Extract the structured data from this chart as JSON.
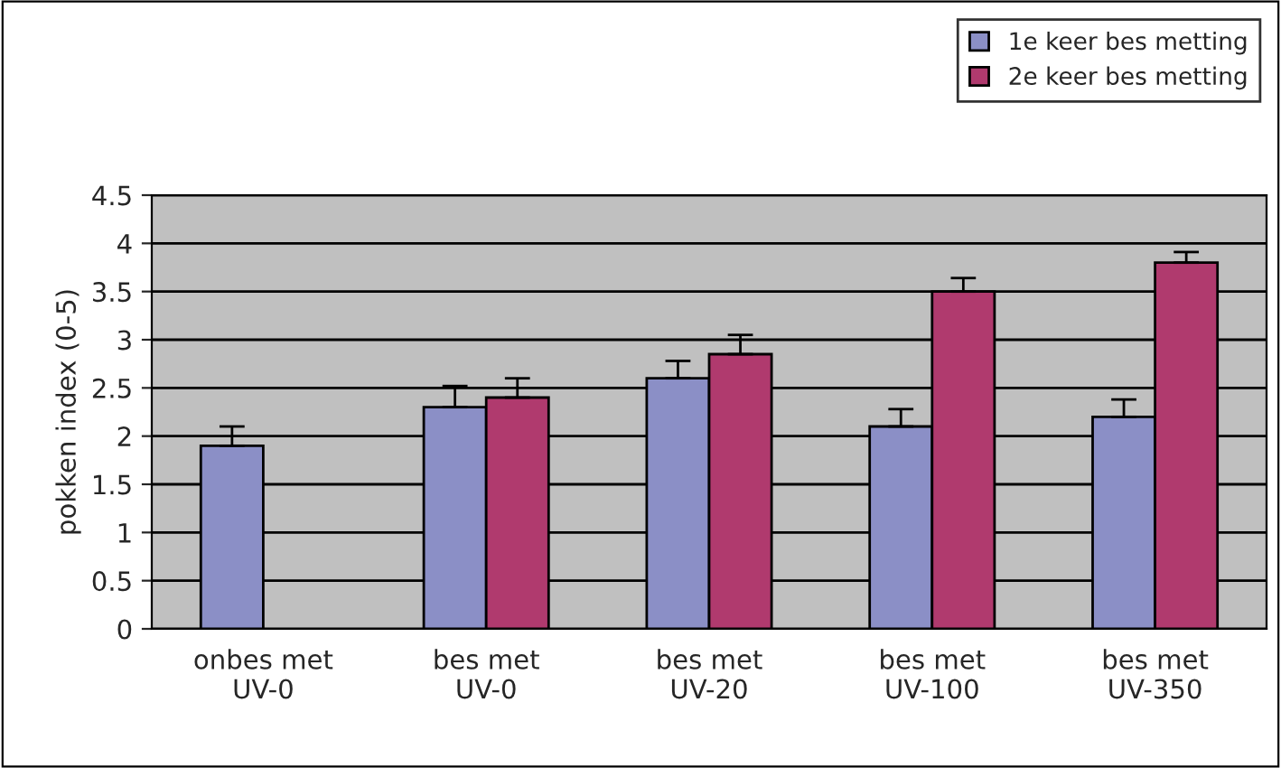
{
  "chart_data": {
    "type": "bar",
    "ylabel": "pokken index (0-5)",
    "categories": [
      "onbes met\nUV-0",
      "bes met\nUV-0",
      "bes met\nUV-20",
      "bes met\nUV-100",
      "bes met\nUV-350"
    ],
    "series": [
      {
        "name": "1e keer bes metting",
        "color": "#8b8fc6",
        "values": [
          1.9,
          2.3,
          2.6,
          2.1,
          2.2
        ],
        "errors": [
          [
            1.9,
            2.1
          ],
          [
            2.3,
            2.52
          ],
          [
            2.6,
            2.78
          ],
          [
            2.1,
            2.28
          ],
          [
            2.2,
            2.38
          ]
        ]
      },
      {
        "name": "2e keer bes metting",
        "color": "#b03a6e",
        "values": [
          null,
          2.4,
          2.85,
          3.5,
          3.8
        ],
        "errors": [
          null,
          [
            2.4,
            2.6
          ],
          [
            2.85,
            3.05
          ],
          [
            3.5,
            3.64
          ],
          [
            3.8,
            3.91
          ]
        ]
      }
    ],
    "ylim": [
      0,
      4.5
    ],
    "yticks": [
      0,
      0.5,
      1,
      1.5,
      2,
      2.5,
      3,
      3.5,
      4,
      4.5
    ],
    "grid": "y",
    "legend": "top right"
  }
}
